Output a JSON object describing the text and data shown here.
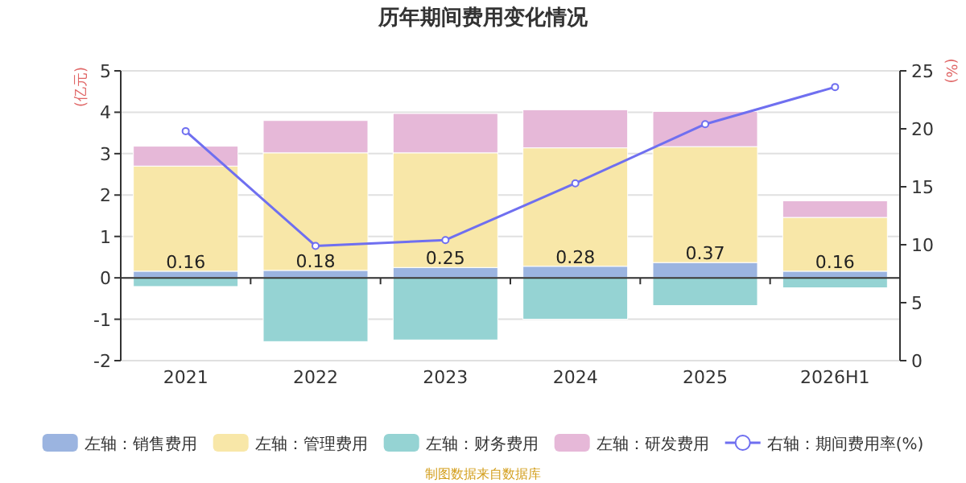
{
  "chart_data": {
    "type": "bar",
    "stacked": true,
    "title": "历年期间费用变化情况",
    "ylabel": "(亿元)",
    "y2label": "(%)",
    "categories": [
      "2021",
      "2022",
      "2023",
      "2024",
      "2025",
      "2026H1"
    ],
    "series": [
      {
        "name": "左轴：销售费用",
        "color": "#9bb4e0",
        "values": [
          0.16,
          0.18,
          0.25,
          0.28,
          0.37,
          0.16
        ],
        "value_labels": [
          "0.16",
          "0.18",
          "0.25",
          "0.28",
          "0.37",
          "0.16"
        ]
      },
      {
        "name": "左轴：管理费用",
        "color": "#f8e7a8",
        "values": [
          2.54,
          2.84,
          2.77,
          2.86,
          2.8,
          1.3
        ]
      },
      {
        "name": "左轴：财务费用",
        "color": "#95d3d3",
        "values": [
          -0.21,
          -1.54,
          -1.5,
          -1.0,
          -0.67,
          -0.24
        ]
      },
      {
        "name": "左轴：研发费用",
        "color": "#e6b8d8",
        "values": [
          0.48,
          0.78,
          0.95,
          0.92,
          0.85,
          0.4
        ]
      },
      {
        "name": "右轴：期间费用率(%)",
        "type": "line",
        "axis": "y2",
        "color": "#6f6ff0",
        "marker": "circle",
        "values": [
          19.8,
          9.9,
          10.4,
          15.3,
          20.4,
          23.6
        ]
      }
    ],
    "ylim": [
      -2,
      5
    ],
    "yticks": [
      -2,
      -1,
      0,
      1,
      2,
      3,
      4,
      5
    ],
    "y2lim": [
      0,
      25
    ],
    "y2ticks": [
      0,
      5,
      10,
      15,
      20,
      25
    ],
    "grid": "y",
    "legend": "bottom",
    "annotations": [
      "制图数据来自数据库"
    ]
  }
}
